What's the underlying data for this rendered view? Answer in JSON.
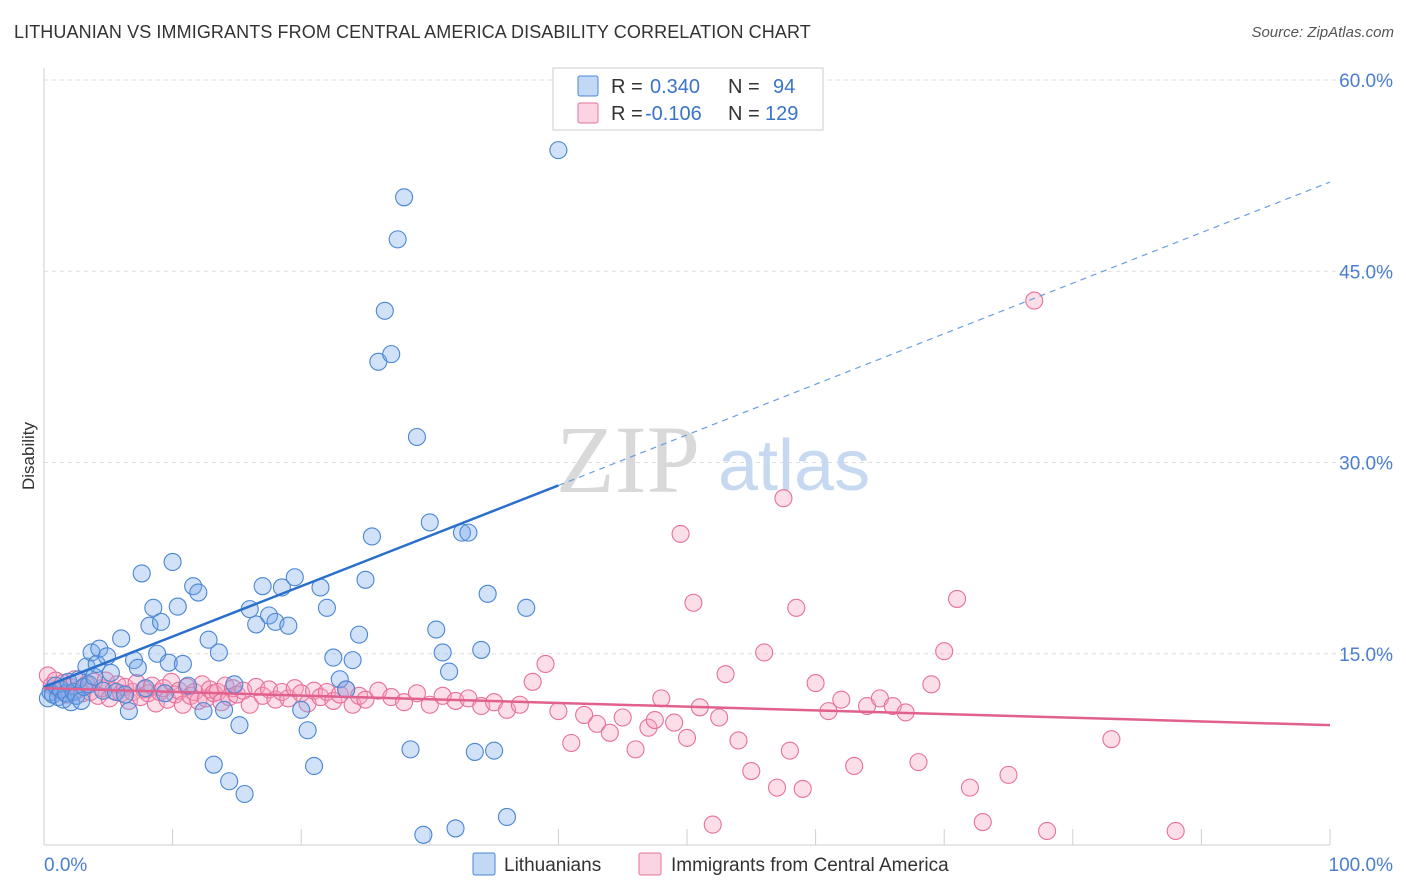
{
  "header": {
    "title": "LITHUANIAN VS IMMIGRANTS FROM CENTRAL AMERICA DISABILITY CORRELATION CHART",
    "source": "Source: ZipAtlas.com"
  },
  "watermark": {
    "zip": "ZIP",
    "atlas": "atlas"
  },
  "colors": {
    "blue": "#4a86d4",
    "blue_fill": "rgba(120,170,235,0.35)",
    "pink": "#e8709a",
    "pink_fill": "rgba(245,160,190,0.35)",
    "grid": "#dddddd",
    "tick_text": "#4a7ed0"
  },
  "legend": {
    "rows": [
      {
        "r_label": "R =",
        "r_value": "0.340",
        "n_label": "N =",
        "n_value": "94"
      },
      {
        "r_label": "R =",
        "r_value": "-0.106",
        "n_label": "N =",
        "n_value": "129"
      }
    ]
  },
  "chart_data": {
    "type": "scatter",
    "xlabel": "",
    "ylabel": "Disability",
    "x_tick_labels": [
      "0.0%",
      "100.0%"
    ],
    "y_tick_labels": [
      "15.0%",
      "30.0%",
      "45.0%",
      "60.0%"
    ],
    "xlim": [
      0,
      100
    ],
    "ylim": [
      0,
      60
    ],
    "grid": true,
    "legend_placement": "top-center",
    "series": [
      {
        "name": "Lithuanians",
        "r": 0.34,
        "n": 94,
        "trend": {
          "x0": 0,
          "y0": 12.4,
          "x1": 40,
          "y1": 28.2,
          "dashed_to_x": 100,
          "dashed_to_y": 52.0
        },
        "points": [
          [
            0.3,
            11.5
          ],
          [
            0.5,
            12.0
          ],
          [
            0.7,
            11.8
          ],
          [
            0.9,
            12.5
          ],
          [
            1.1,
            11.6
          ],
          [
            1.3,
            12.2
          ],
          [
            1.5,
            11.4
          ],
          [
            1.7,
            11.9
          ],
          [
            1.9,
            12.8
          ],
          [
            2.1,
            11.2
          ],
          [
            2.3,
            12.0
          ],
          [
            2.5,
            11.7
          ],
          [
            2.7,
            13.0
          ],
          [
            2.9,
            11.3
          ],
          [
            3.1,
            12.4
          ],
          [
            3.3,
            14.0
          ],
          [
            3.5,
            12.6
          ],
          [
            3.7,
            15.1
          ],
          [
            3.9,
            13.2
          ],
          [
            4.1,
            14.2
          ],
          [
            4.3,
            15.4
          ],
          [
            4.6,
            12.1
          ],
          [
            4.9,
            14.8
          ],
          [
            5.2,
            13.5
          ],
          [
            5.6,
            12.0
          ],
          [
            6.0,
            16.2
          ],
          [
            6.3,
            11.8
          ],
          [
            6.6,
            10.5
          ],
          [
            7.0,
            14.5
          ],
          [
            7.3,
            13.9
          ],
          [
            7.6,
            21.3
          ],
          [
            7.9,
            12.3
          ],
          [
            8.2,
            17.2
          ],
          [
            8.5,
            18.6
          ],
          [
            8.8,
            15.0
          ],
          [
            9.1,
            17.5
          ],
          [
            9.4,
            11.9
          ],
          [
            9.7,
            14.3
          ],
          [
            10.0,
            22.2
          ],
          [
            10.4,
            18.7
          ],
          [
            10.8,
            14.2
          ],
          [
            11.2,
            12.5
          ],
          [
            11.6,
            20.3
          ],
          [
            12.0,
            19.8
          ],
          [
            12.4,
            10.5
          ],
          [
            12.8,
            16.1
          ],
          [
            13.2,
            6.3
          ],
          [
            13.6,
            15.1
          ],
          [
            14.0,
            10.6
          ],
          [
            14.4,
            5.0
          ],
          [
            14.8,
            12.6
          ],
          [
            15.2,
            9.4
          ],
          [
            15.6,
            4.0
          ],
          [
            16.0,
            18.5
          ],
          [
            16.5,
            17.3
          ],
          [
            17.0,
            20.3
          ],
          [
            17.5,
            18.0
          ],
          [
            18.0,
            17.5
          ],
          [
            18.5,
            20.2
          ],
          [
            19.0,
            17.2
          ],
          [
            19.5,
            21.0
          ],
          [
            20.0,
            10.6
          ],
          [
            20.5,
            9.0
          ],
          [
            21.0,
            6.2
          ],
          [
            21.5,
            20.2
          ],
          [
            22.0,
            18.6
          ],
          [
            22.5,
            14.7
          ],
          [
            23.0,
            13.0
          ],
          [
            23.5,
            12.2
          ],
          [
            24.0,
            14.5
          ],
          [
            24.5,
            16.5
          ],
          [
            25.0,
            20.8
          ],
          [
            25.5,
            24.2
          ],
          [
            26.0,
            37.9
          ],
          [
            26.5,
            41.9
          ],
          [
            27.0,
            38.5
          ],
          [
            27.5,
            47.5
          ],
          [
            28.0,
            50.8
          ],
          [
            28.5,
            7.5
          ],
          [
            29.0,
            32.0
          ],
          [
            29.5,
            0.8
          ],
          [
            30.0,
            25.3
          ],
          [
            30.5,
            16.9
          ],
          [
            31.0,
            15.1
          ],
          [
            31.5,
            13.6
          ],
          [
            32.0,
            1.3
          ],
          [
            32.5,
            24.5
          ],
          [
            33.0,
            24.5
          ],
          [
            33.5,
            7.3
          ],
          [
            34.0,
            15.3
          ],
          [
            34.5,
            19.7
          ],
          [
            35.0,
            7.4
          ],
          [
            36.0,
            2.2
          ],
          [
            37.5,
            18.6
          ],
          [
            40.0,
            54.5
          ]
        ]
      },
      {
        "name": "Immigrants from Central America",
        "r": -0.106,
        "n": 129,
        "trend": {
          "x0": 0,
          "y0": 12.3,
          "x1": 100,
          "y1": 9.4
        },
        "points": [
          [
            0.3,
            13.3
          ],
          [
            0.6,
            12.5
          ],
          [
            0.9,
            12.9
          ],
          [
            1.2,
            12.1
          ],
          [
            1.5,
            12.7
          ],
          [
            1.8,
            11.8
          ],
          [
            2.1,
            12.4
          ],
          [
            2.4,
            13.0
          ],
          [
            2.7,
            12.2
          ],
          [
            3.0,
            11.9
          ],
          [
            3.3,
            12.6
          ],
          [
            3.6,
            12.0
          ],
          [
            3.9,
            12.8
          ],
          [
            4.2,
            11.7
          ],
          [
            4.5,
            12.3
          ],
          [
            4.8,
            12.9
          ],
          [
            5.1,
            11.5
          ],
          [
            5.4,
            12.1
          ],
          [
            5.7,
            12.6
          ],
          [
            6.0,
            11.9
          ],
          [
            6.3,
            12.4
          ],
          [
            6.6,
            11.3
          ],
          [
            6.9,
            12.0
          ],
          [
            7.2,
            12.7
          ],
          [
            7.5,
            11.6
          ],
          [
            7.8,
            12.2
          ],
          [
            8.1,
            11.9
          ],
          [
            8.4,
            12.5
          ],
          [
            8.7,
            11.1
          ],
          [
            9.0,
            12.0
          ],
          [
            9.3,
            12.3
          ],
          [
            9.6,
            11.4
          ],
          [
            9.9,
            12.8
          ],
          [
            10.2,
            11.8
          ],
          [
            10.5,
            12.1
          ],
          [
            10.8,
            11.0
          ],
          [
            11.1,
            12.4
          ],
          [
            11.4,
            11.7
          ],
          [
            11.7,
            12.0
          ],
          [
            12.0,
            11.3
          ],
          [
            12.3,
            12.6
          ],
          [
            12.6,
            11.5
          ],
          [
            12.9,
            12.2
          ],
          [
            13.2,
            11.9
          ],
          [
            13.5,
            12.0
          ],
          [
            13.8,
            11.2
          ],
          [
            14.1,
            12.5
          ],
          [
            14.4,
            11.6
          ],
          [
            14.7,
            12.3
          ],
          [
            15.0,
            11.8
          ],
          [
            15.5,
            12.1
          ],
          [
            16.0,
            11.0
          ],
          [
            16.5,
            12.4
          ],
          [
            17.0,
            11.7
          ],
          [
            17.5,
            12.2
          ],
          [
            18.0,
            11.4
          ],
          [
            18.5,
            12.0
          ],
          [
            19.0,
            11.5
          ],
          [
            19.5,
            12.3
          ],
          [
            20.0,
            11.9
          ],
          [
            20.5,
            11.1
          ],
          [
            21.0,
            12.1
          ],
          [
            21.5,
            11.6
          ],
          [
            22.0,
            12.0
          ],
          [
            22.5,
            11.3
          ],
          [
            23.0,
            11.8
          ],
          [
            23.5,
            12.2
          ],
          [
            24.0,
            11.0
          ],
          [
            24.5,
            11.7
          ],
          [
            25.0,
            11.4
          ],
          [
            26.0,
            12.1
          ],
          [
            27.0,
            11.6
          ],
          [
            28.0,
            11.2
          ],
          [
            29.0,
            11.9
          ],
          [
            30.0,
            11.0
          ],
          [
            31.0,
            11.7
          ],
          [
            32.0,
            11.3
          ],
          [
            33.0,
            11.5
          ],
          [
            34.0,
            10.9
          ],
          [
            35.0,
            11.2
          ],
          [
            36.0,
            10.6
          ],
          [
            37.0,
            11.0
          ],
          [
            38.0,
            12.8
          ],
          [
            39.0,
            14.2
          ],
          [
            40.0,
            10.5
          ],
          [
            41.0,
            8.0
          ],
          [
            42.0,
            10.2
          ],
          [
            43.0,
            9.5
          ],
          [
            44.0,
            8.8
          ],
          [
            45.0,
            10.0
          ],
          [
            46.0,
            7.5
          ],
          [
            47.0,
            9.2
          ],
          [
            48.0,
            11.5
          ],
          [
            49.0,
            9.6
          ],
          [
            50.0,
            8.4
          ],
          [
            51.0,
            10.8
          ],
          [
            52.0,
            1.6
          ],
          [
            53.0,
            13.4
          ],
          [
            54.0,
            8.2
          ],
          [
            55.0,
            5.8
          ],
          [
            56.0,
            15.1
          ],
          [
            57.0,
            4.5
          ],
          [
            58.0,
            7.4
          ],
          [
            59.0,
            4.4
          ],
          [
            60.0,
            12.7
          ],
          [
            61.0,
            10.5
          ],
          [
            62.0,
            11.4
          ],
          [
            63.0,
            6.2
          ],
          [
            64.0,
            10.9
          ],
          [
            65.0,
            11.5
          ],
          [
            66.0,
            10.9
          ],
          [
            67.0,
            10.4
          ],
          [
            68.0,
            6.5
          ],
          [
            69.0,
            12.6
          ],
          [
            70.0,
            15.2
          ],
          [
            71.0,
            19.3
          ],
          [
            72.0,
            4.5
          ],
          [
            73.0,
            1.8
          ],
          [
            75.0,
            5.5
          ],
          [
            77.0,
            42.7
          ],
          [
            78.0,
            1.1
          ],
          [
            83.0,
            8.3
          ],
          [
            88.0,
            1.1
          ],
          [
            49.5,
            24.4
          ],
          [
            57.5,
            27.2
          ],
          [
            50.5,
            19.0
          ],
          [
            58.5,
            18.6
          ],
          [
            52.5,
            10.0
          ],
          [
            47.5,
            9.8
          ]
        ]
      }
    ]
  },
  "bottom_legend": [
    {
      "label": "Lithuanians"
    },
    {
      "label": "Immigrants from Central America"
    }
  ]
}
